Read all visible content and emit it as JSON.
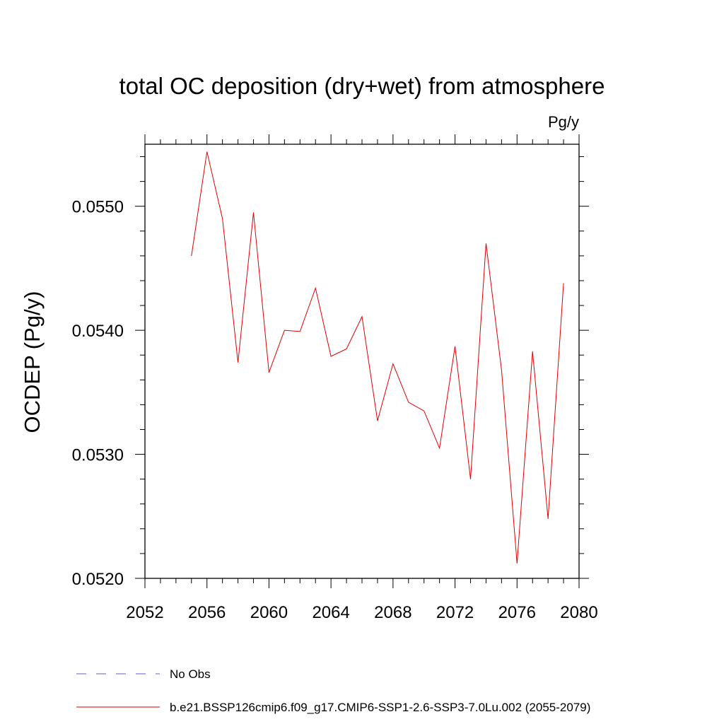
{
  "chart_data": {
    "type": "line",
    "title": "total OC deposition (dry+wet) from atmosphere",
    "units_label": "Pg/y",
    "xlabel": "",
    "ylabel": "OCDEP  (Pg/y)",
    "xlim": [
      2052,
      2080
    ],
    "ylim": [
      0.052,
      0.0555
    ],
    "xticks": [
      "2052",
      "2056",
      "2060",
      "2064",
      "2068",
      "2072",
      "2076",
      "2080"
    ],
    "yticks": [
      "0.0520",
      "0.0530",
      "0.0540",
      "0.0550"
    ],
    "grid": false,
    "legend_position": "bottom",
    "colors": {
      "obs": "#6a5acd",
      "model": "#e00000"
    },
    "series": [
      {
        "name": "No Obs",
        "style": "dashed",
        "x": [],
        "values": []
      },
      {
        "name": "b.e21.BSSP126cmip6.f09_g17.CMIP6-SSP1-2.6-SSP3-7.0Lu.002 (2055-2079)",
        "style": "solid",
        "x": [
          2055,
          2056,
          2057,
          2058,
          2059,
          2060,
          2061,
          2062,
          2063,
          2064,
          2065,
          2066,
          2067,
          2068,
          2069,
          2070,
          2071,
          2072,
          2073,
          2074,
          2075,
          2076,
          2077,
          2078,
          2079
        ],
        "values": [
          0.0546,
          0.05544,
          0.0549,
          0.05374,
          0.05495,
          0.05366,
          0.054,
          0.05399,
          0.05434,
          0.05379,
          0.05385,
          0.05411,
          0.05327,
          0.05373,
          0.05342,
          0.05335,
          0.05305,
          0.05387,
          0.0528,
          0.0547,
          0.05368,
          0.05212,
          0.05383,
          0.05248,
          0.05438
        ]
      }
    ]
  }
}
